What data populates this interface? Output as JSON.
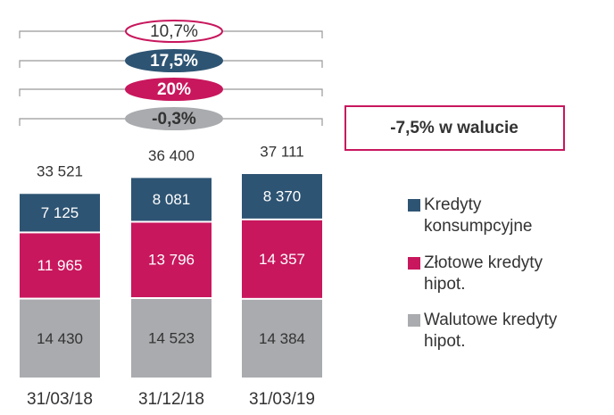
{
  "chart_data": {
    "type": "stacked_bar",
    "categories": [
      "31/03/18",
      "31/12/18",
      "31/03/19"
    ],
    "series": [
      {
        "name": "Walutowe kredyty hipot.",
        "color": "#a9abae",
        "values": [
          14430,
          14523,
          14384
        ],
        "value_labels": [
          "14 430",
          "14 523",
          "14 384"
        ]
      },
      {
        "name": "Złotowe kredyty hipot.",
        "color": "#c8175d",
        "values": [
          11965,
          13796,
          14357
        ],
        "value_labels": [
          "11 965",
          "13 796",
          "14 357"
        ]
      },
      {
        "name": "Kredyty konsumpcyjne",
        "color": "#2e5473",
        "values": [
          7125,
          8081,
          8370
        ],
        "value_labels": [
          "7 125",
          "8 081",
          "8 370"
        ]
      }
    ],
    "totals": [
      33521,
      36400,
      37111
    ],
    "total_labels": [
      "33 521",
      "36 400",
      "37 111"
    ],
    "annotations": [
      {
        "text": "10,7%",
        "color": "#ffffff",
        "border": "#c8175d",
        "text_color": "#333333"
      },
      {
        "text": "17,5%",
        "color": "#2e5473",
        "border": "#2e5473",
        "text_color": "#ffffff"
      },
      {
        "text": "20%",
        "color": "#c8175d",
        "border": "#c8175d",
        "text_color": "#ffffff"
      },
      {
        "text": "-0,3%",
        "color": "#a9abae",
        "border": "#a9abae",
        "text_color": "#333333"
      }
    ],
    "note_box": {
      "text": "-7,5% w walucie",
      "border": "#c8175d"
    }
  }
}
